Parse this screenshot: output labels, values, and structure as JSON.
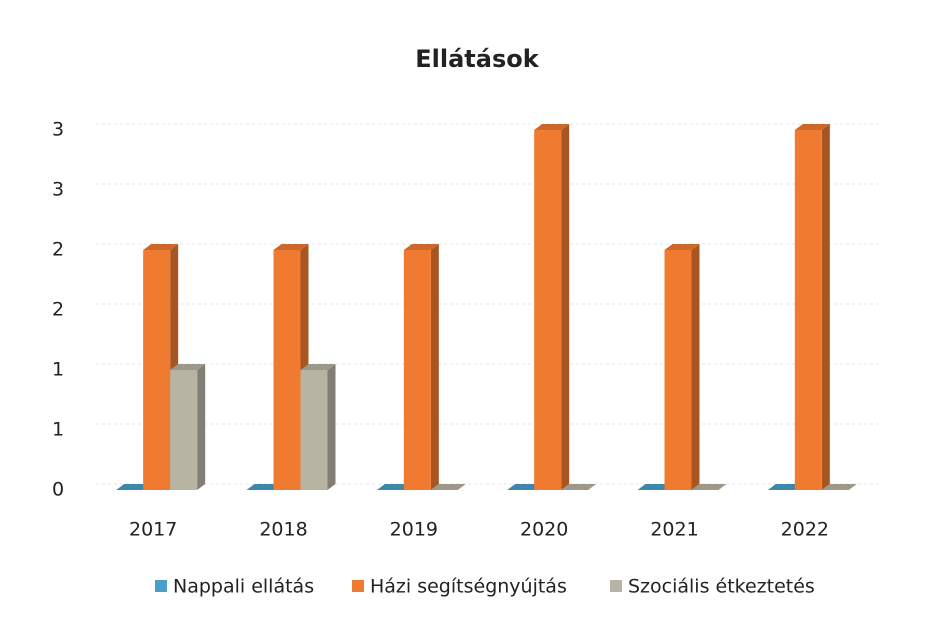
{
  "chart_data": {
    "type": "bar3d",
    "title": "Ellátások",
    "categories": [
      "2017",
      "2018",
      "2019",
      "2020",
      "2021",
      "2022"
    ],
    "series": [
      {
        "name": "Nappali ellátás",
        "color": "#4a9fc8",
        "values": [
          0,
          0,
          0,
          0,
          0,
          0
        ]
      },
      {
        "name": "Házi segítségnyújtás",
        "color": "#f07a30",
        "values": [
          2,
          2,
          2,
          3,
          2,
          3
        ]
      },
      {
        "name": "Szociális étkeztetés",
        "color": "#b8b4a4",
        "values": [
          1,
          1,
          0,
          0,
          0,
          0
        ]
      }
    ],
    "ylim": [
      0,
      3
    ],
    "yticks": [
      0,
      {
        "value": 0.5,
        "label": "1"
      },
      1,
      {
        "value": 1.5,
        "label": "2"
      },
      2,
      {
        "value": 2.5,
        "label": "3"
      },
      3
    ],
    "grid": true,
    "legend": "bottom"
  }
}
